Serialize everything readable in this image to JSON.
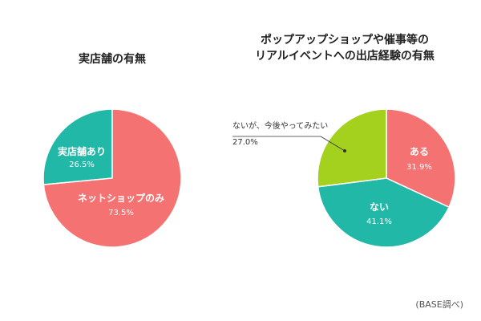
{
  "colors": {
    "salmon": "#f57272",
    "teal": "#21b8a7",
    "lime": "#a4d01e",
    "label_white": "#ffffff",
    "label_dark": "#333333"
  },
  "chart_data": [
    {
      "type": "pie",
      "title": "実店舗の有無",
      "slices": [
        {
          "label": "実店舗あり",
          "value": 26.5,
          "value_label": "26.5%",
          "color": "#21b8a7"
        },
        {
          "label": "ネットショップのみ",
          "value": 73.5,
          "value_label": "73.5%",
          "color": "#f57272"
        }
      ]
    },
    {
      "type": "pie",
      "title": "ポップアップショップや催事等の\nリアルイベントへの出店経験の有無",
      "slices": [
        {
          "label": "ある",
          "value": 31.9,
          "value_label": "31.9%",
          "color": "#f57272"
        },
        {
          "label": "ない",
          "value": 41.1,
          "value_label": "41.1%",
          "color": "#21b8a7"
        },
        {
          "label": "ないが、今後やってみたい",
          "value": 27.0,
          "value_label": "27.0%",
          "color": "#a4d01e"
        }
      ]
    }
  ],
  "source_note": "(BASE調べ)"
}
